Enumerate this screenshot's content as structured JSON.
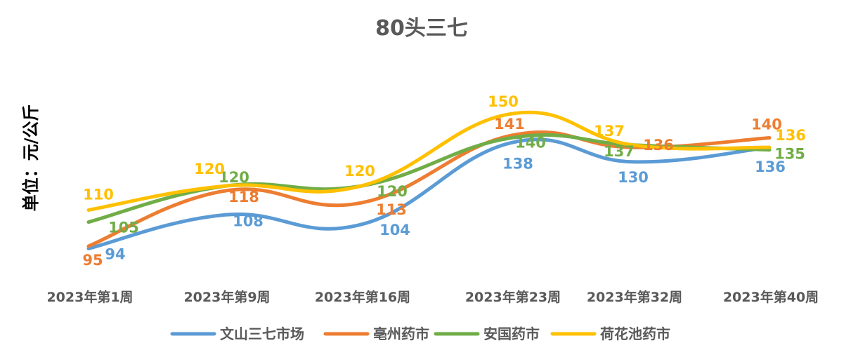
{
  "chart_data": {
    "type": "line",
    "title": "80头三七",
    "ylabel": "单位：元/公斤",
    "xlabel": "",
    "categories": [
      "2023年第1周",
      "2023年第9周",
      "2023年第16周",
      "2023年第23周",
      "2023年第32周",
      "2023年第40周"
    ],
    "ylim": [
      88,
      155
    ],
    "grid": false,
    "legend_position": "bottom",
    "smooth": true,
    "series": [
      {
        "name": "文山三七市场",
        "color": "#5B9BD5",
        "values": [
          94,
          108,
          104,
          138,
          130,
          136
        ]
      },
      {
        "name": "亳州药市",
        "color": "#ED7D31",
        "values": [
          95,
          118,
          113,
          141,
          136,
          140
        ]
      },
      {
        "name": "安国药市",
        "color": "#70AD47",
        "values": [
          105,
          120,
          120,
          140,
          137,
          135
        ]
      },
      {
        "name": "荷花池药市",
        "color": "#FFC000",
        "values": [
          110,
          120,
          120,
          150,
          137,
          136
        ]
      }
    ]
  }
}
